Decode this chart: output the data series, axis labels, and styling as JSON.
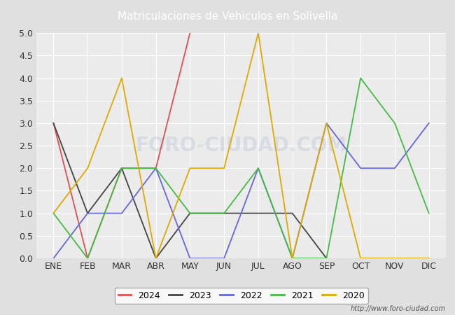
{
  "title": "Matriculaciones de Vehiculos en Solivella",
  "months": [
    "ENE",
    "FEB",
    "MAR",
    "ABR",
    "MAY",
    "JUN",
    "JUL",
    "AGO",
    "SEP",
    "OCT",
    "NOV",
    "DIC"
  ],
  "series": {
    "2024": [
      3.0,
      0.0,
      2.0,
      2.0,
      5.0,
      null,
      null,
      null,
      null,
      null,
      null,
      null
    ],
    "2023": [
      3.0,
      1.0,
      2.0,
      0.0,
      1.0,
      1.0,
      1.0,
      1.0,
      0.0,
      null,
      null,
      null
    ],
    "2022": [
      0.0,
      1.0,
      1.0,
      2.0,
      0.0,
      0.0,
      2.0,
      0.0,
      3.0,
      2.0,
      2.0,
      3.0
    ],
    "2021": [
      1.0,
      0.0,
      2.0,
      2.0,
      1.0,
      1.0,
      2.0,
      0.0,
      0.0,
      4.0,
      3.0,
      1.0
    ],
    "2020": [
      1.0,
      2.0,
      4.0,
      0.0,
      2.0,
      2.0,
      5.0,
      0.0,
      3.0,
      0.0,
      0.0,
      0.0
    ]
  },
  "series_colors": {
    "2024": "#e05050",
    "2023": "#444444",
    "2022": "#6666dd",
    "2021": "#44bb44",
    "2020": "#ddaa00"
  },
  "ylim": [
    0.0,
    5.0
  ],
  "yticks": [
    0.0,
    0.5,
    1.0,
    1.5,
    2.0,
    2.5,
    3.0,
    3.5,
    4.0,
    4.5,
    5.0
  ],
  "title_bg_color": "#5080c0",
  "title_text_color": "#ffffff",
  "plot_bg_color": "#ebebeb",
  "fig_bg_color": "#e0e0e0",
  "legend_border_color": "#999999",
  "watermark_text": "FORO-CIUDAD.COM",
  "watermark_color": "#c0c8d8",
  "watermark_alpha": 0.45,
  "url_text": "http://www.foro-ciudad.com",
  "grid_color": "#ffffff",
  "linewidth": 1.3
}
